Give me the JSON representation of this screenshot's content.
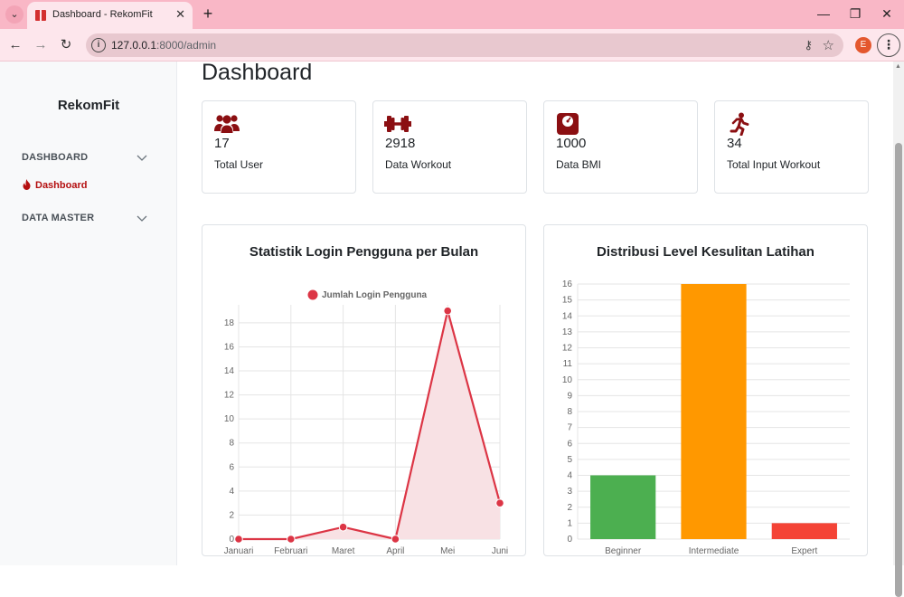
{
  "browser": {
    "tab_title": "Dashboard - RekomFit",
    "new_tab_label": "+",
    "url_host": "127.0.0.1",
    "url_path": ":8000/admin",
    "profile_initial": "E"
  },
  "sidebar": {
    "brand": "RekomFit",
    "groups": [
      {
        "label": "DASHBOARD"
      },
      {
        "label": "DATA MASTER"
      }
    ],
    "active_item": "Dashboard"
  },
  "page": {
    "title": "Dashboard"
  },
  "stats": [
    {
      "icon": "users-icon",
      "value": "17",
      "label": "Total User"
    },
    {
      "icon": "dumbbell-icon",
      "value": "2918",
      "label": "Data Workout"
    },
    {
      "icon": "weight-scale-icon",
      "value": "1000",
      "label": "Data BMI"
    },
    {
      "icon": "running-person-icon",
      "value": "34",
      "label": "Total Input Workout"
    }
  ],
  "colors": {
    "accent": "#8b0f12",
    "line": "#dc3545",
    "line_fill": "#f8e1e4",
    "beginner": "#4caf50",
    "intermediate": "#ff9800",
    "expert": "#f44336",
    "tabbar": "#f9b7c6"
  },
  "chart_data": [
    {
      "type": "line",
      "title": "Statistik Login Pengguna per Bulan",
      "categories": [
        "Januari",
        "Februari",
        "Maret",
        "April",
        "Mei",
        "Juni"
      ],
      "series": [
        {
          "name": "Jumlah Login Pengguna",
          "values": [
            0,
            0,
            1,
            0,
            19,
            3
          ]
        }
      ],
      "yticks": [
        "0",
        "2",
        "4",
        "6",
        "8",
        "10",
        "12",
        "14",
        "16",
        "18"
      ],
      "ylim": [
        0,
        19.5
      ],
      "grid": true,
      "legend": "top"
    },
    {
      "type": "bar",
      "title": "Distribusi Level Kesulitan Latihan",
      "categories": [
        "Beginner",
        "Intermediate",
        "Expert"
      ],
      "values": [
        4,
        16,
        1
      ],
      "yticks": [
        "0",
        "1",
        "2",
        "3",
        "4",
        "5",
        "6",
        "7",
        "8",
        "9",
        "10",
        "11",
        "12",
        "13",
        "14",
        "15",
        "16"
      ],
      "ylim": [
        0,
        16
      ],
      "grid": true
    }
  ]
}
